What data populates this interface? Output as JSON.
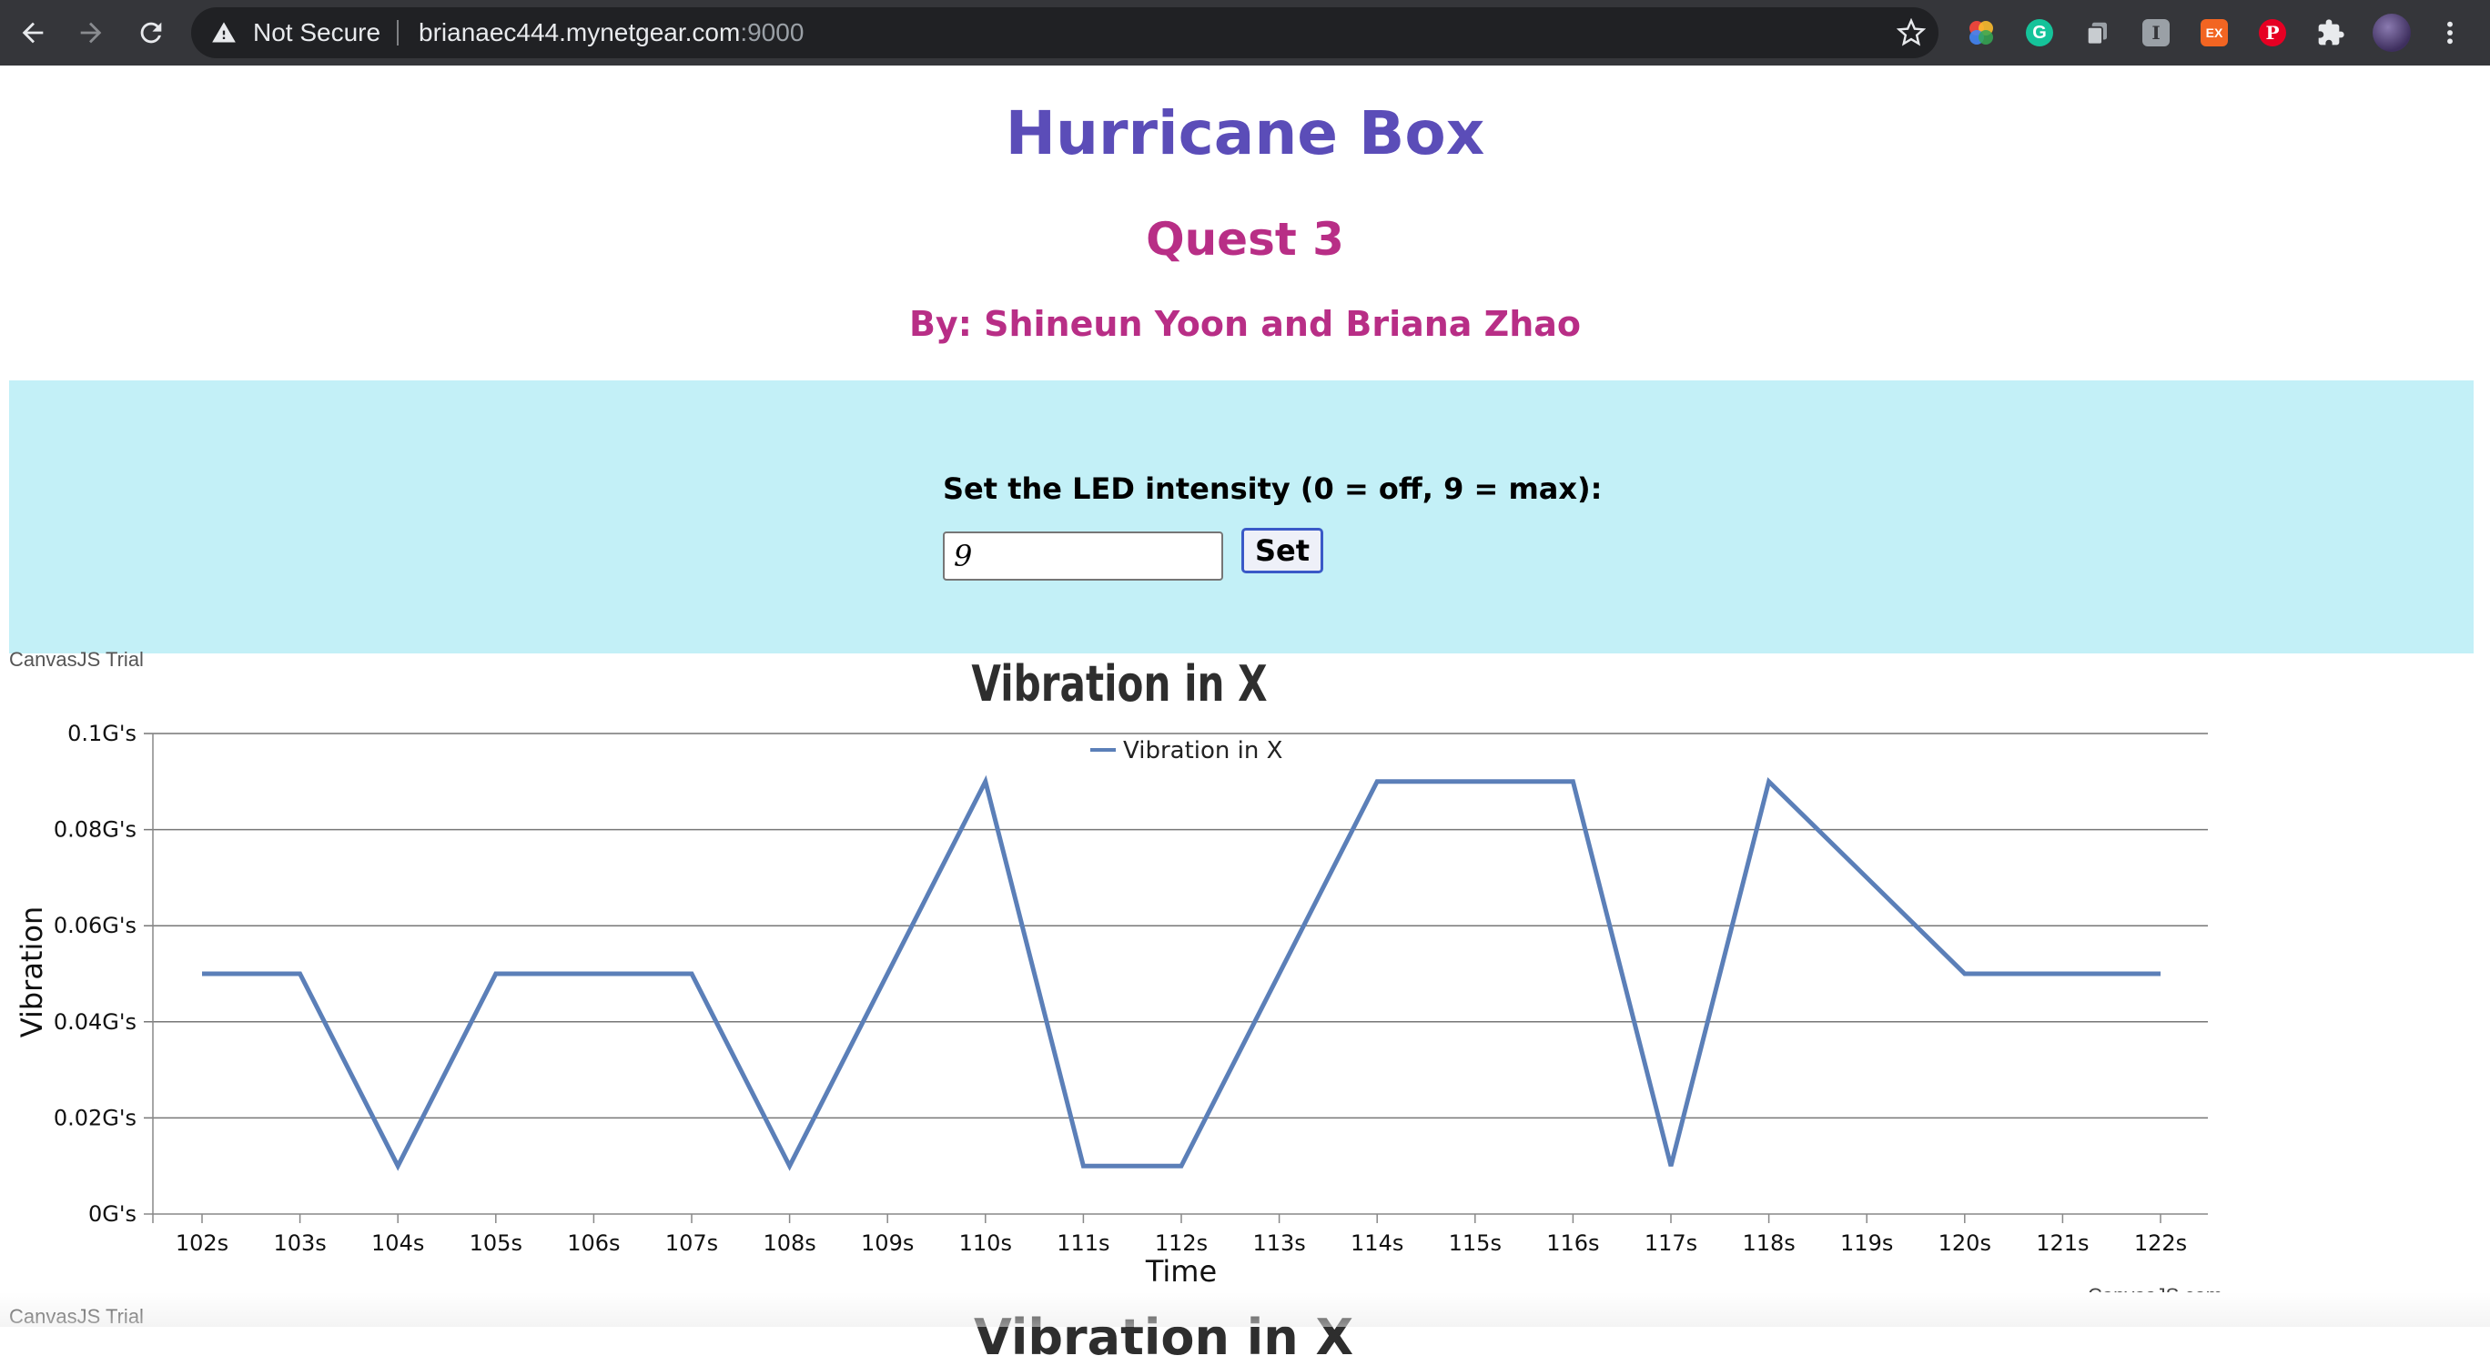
{
  "browser": {
    "security_label": "Not Secure",
    "url_host": "brianaec444.mynetgear.com",
    "url_port": ":9000",
    "extensions": [
      {
        "name": "color-wheel-extension-icon",
        "color": "#e8453c"
      },
      {
        "name": "grammarly-extension-icon",
        "color": "#15c39a",
        "text": "G"
      },
      {
        "name": "copy-extension-icon",
        "color": "#9aa0a6"
      },
      {
        "name": "instapaper-extension-icon",
        "color": "#9aa0a6",
        "text": "I"
      },
      {
        "name": "ex-extension-icon",
        "color": "#f26522",
        "text": "EX"
      },
      {
        "name": "pinterest-extension-icon",
        "color": "#e60023",
        "text": "P"
      },
      {
        "name": "extensions-puzzle-icon",
        "color": "#e8eaed"
      },
      {
        "name": "profile-avatar",
        "color": "#5a4a7a"
      }
    ]
  },
  "page": {
    "title": "Hurricane Box",
    "subtitle": "Quest 3",
    "authors": "By: Shineun Yoon and Briana Zhao",
    "title_color": "#5b4db8",
    "accent_color": "#b82e86",
    "panel_color": "#c3f0f7"
  },
  "led_form": {
    "label": "Set the LED intensity (0 = off, 9 = max):",
    "value": "9",
    "button_label": "Set"
  },
  "trial_label": "CanvasJS Trial",
  "chart_data": {
    "type": "line",
    "title": "Vibration in X",
    "xlabel": "Time",
    "ylabel": "Vibration",
    "legend_position": "top-center",
    "grid": true,
    "credit": "CanvasJS.com",
    "x": [
      "102s",
      "103s",
      "104s",
      "105s",
      "106s",
      "107s",
      "108s",
      "109s",
      "110s",
      "111s",
      "112s",
      "113s",
      "114s",
      "115s",
      "116s",
      "117s",
      "118s",
      "119s",
      "120s",
      "121s",
      "122s"
    ],
    "ylim": [
      0,
      0.1
    ],
    "y_ticks": [
      "0G's",
      "0.02G's",
      "0.04G's",
      "0.06G's",
      "0.08G's",
      "0.1G's"
    ],
    "series": [
      {
        "name": "Vibration in X",
        "color": "#5b7fb8",
        "values": [
          0.05,
          0.05,
          0.01,
          0.05,
          0.05,
          0.05,
          0.01,
          0.05,
          0.09,
          0.01,
          0.01,
          0.05,
          0.09,
          0.09,
          0.09,
          0.01,
          0.09,
          0.07,
          0.05,
          0.05,
          0.05
        ]
      }
    ]
  },
  "next_chart_title": "Vibration in X"
}
